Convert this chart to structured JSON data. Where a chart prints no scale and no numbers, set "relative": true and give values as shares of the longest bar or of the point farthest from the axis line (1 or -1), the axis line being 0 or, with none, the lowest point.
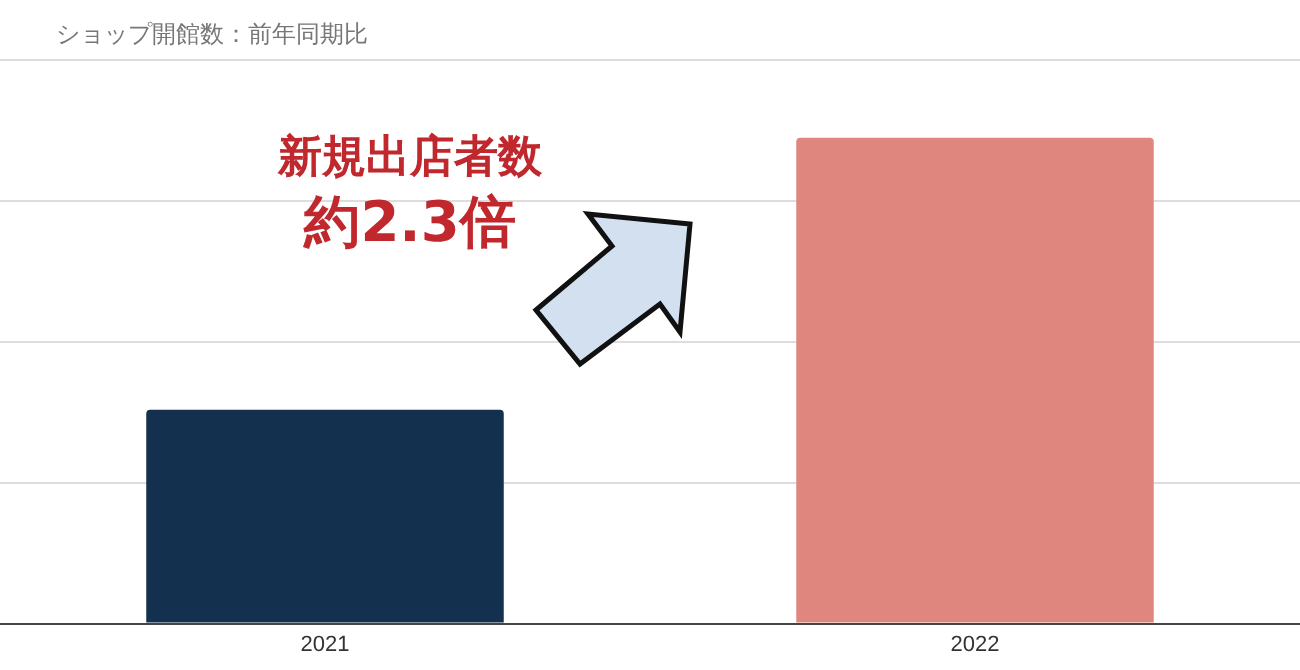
{
  "chart_data": {
    "type": "bar",
    "title": "ショップ開館数：前年同期比",
    "categories": [
      "2021",
      "2022"
    ],
    "values": [
      0.44,
      1
    ],
    "colors": [
      "#13304f",
      "#df877f"
    ],
    "relative": true,
    "grid": "y",
    "annotations": [
      "新規出店者数",
      "約2.3倍"
    ]
  }
}
